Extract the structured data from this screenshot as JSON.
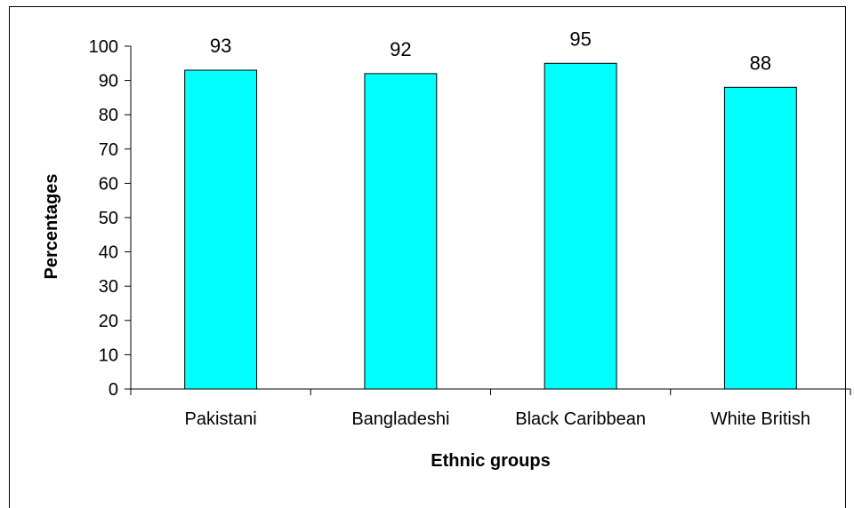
{
  "chart_data": {
    "type": "bar",
    "categories": [
      "Pakistani",
      "Bangladeshi",
      "Black Caribbean",
      "White British"
    ],
    "values": [
      93,
      92,
      95,
      88
    ],
    "data_labels": [
      "93",
      "92",
      "95",
      "88"
    ],
    "title": "",
    "xlabel": "Ethnic groups",
    "ylabel": "Percentages",
    "ylim": [
      0,
      100
    ],
    "yticks": [
      0,
      10,
      20,
      30,
      40,
      50,
      60,
      70,
      80,
      90,
      100
    ],
    "grid": false,
    "legend": "none",
    "colors": {
      "bar_fill": "#00FFFF",
      "bar_stroke": "#000000",
      "axis": "#000000",
      "frame": "#000000"
    }
  }
}
